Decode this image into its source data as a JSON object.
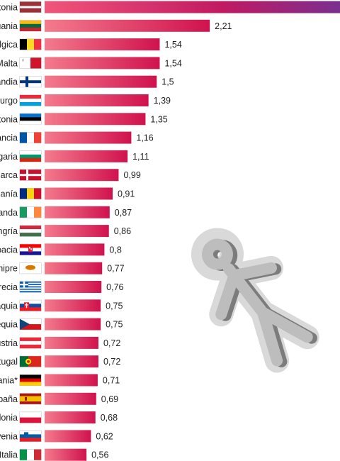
{
  "chart_data": {
    "type": "bar",
    "orientation": "horizontal",
    "title": "",
    "xlabel": "",
    "ylabel": "",
    "xlim": [
      0,
      3.25
    ],
    "grid": false,
    "categories": [
      "tonia",
      "uania",
      "lgica",
      "Malta",
      "andia",
      "urgo",
      "tonia",
      "ancia",
      "garia",
      "marca",
      "manía",
      "anda",
      "ngría",
      "oacia",
      "hipre",
      "recia",
      "aquia",
      "equia",
      "ustria",
      "tugal",
      "ania*",
      "paña",
      "lonia",
      "venia",
      "Italia"
    ],
    "values": [
      null,
      2.21,
      1.54,
      1.54,
      1.5,
      1.39,
      1.35,
      1.16,
      1.11,
      0.99,
      0.91,
      0.87,
      0.86,
      0.8,
      0.77,
      0.76,
      0.75,
      0.75,
      0.72,
      0.72,
      0.71,
      0.69,
      0.68,
      0.62,
      0.56
    ],
    "value_labels": [
      "",
      "2,21",
      "1,54",
      "1,54",
      "1,5",
      "1,39",
      "1,35",
      "1,16",
      "1,11",
      "0,99",
      "0,91",
      "0,87",
      "0,86",
      "0,8",
      "0,77",
      "0,76",
      "0,75",
      "0,75",
      "0,72",
      "0,72",
      "0,71",
      "0,69",
      "0,68",
      "0,62",
      "0,56"
    ],
    "flags": [
      "latvia-flag",
      "lithuania-flag",
      "belgium-flag",
      "malta-flag",
      "finland-flag",
      "luxembourg-flag",
      "estonia-flag",
      "france-flag",
      "bulgaria-flag",
      "denmark-flag",
      "romania-flag",
      "ireland-flag",
      "hungary-flag",
      "croatia-flag",
      "cyprus-flag",
      "greece-flag",
      "slovakia-flag",
      "czechia-flag",
      "austria-flag",
      "portugal-flag",
      "germany-flag",
      "spain-flag",
      "poland-flag",
      "slovenia-flag",
      "italy-flag"
    ],
    "colors": {
      "bar_start": "#f47b8c",
      "bar_end": "#d0124e",
      "top_bar_end": "#7a2f8f"
    }
  },
  "decoration": {
    "icon": "crime-scene-body-outline-icon"
  }
}
